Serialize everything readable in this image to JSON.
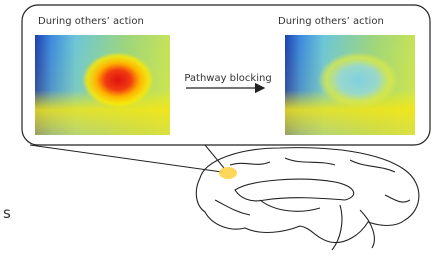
{
  "panels": [
    {
      "title": "During others’ action"
    },
    {
      "title": "During others’ action"
    }
  ],
  "arrow": {
    "label": "Pathway blocking"
  },
  "edge_text": "s"
}
